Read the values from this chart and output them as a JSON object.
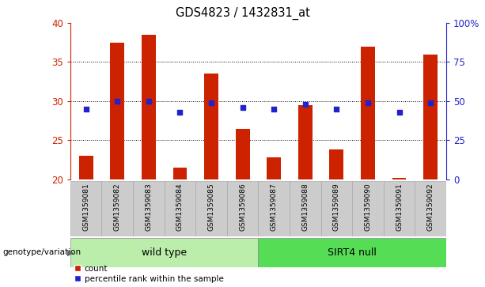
{
  "title": "GDS4823 / 1432831_at",
  "samples": [
    "GSM1359081",
    "GSM1359082",
    "GSM1359083",
    "GSM1359084",
    "GSM1359085",
    "GSM1359086",
    "GSM1359087",
    "GSM1359088",
    "GSM1359089",
    "GSM1359090",
    "GSM1359091",
    "GSM1359092"
  ],
  "counts": [
    23.0,
    37.5,
    38.5,
    21.5,
    33.5,
    26.5,
    22.8,
    29.5,
    23.8,
    37.0,
    20.2,
    36.0
  ],
  "percentiles": [
    45,
    50,
    50,
    43,
    49,
    46,
    45,
    48,
    45,
    49,
    43,
    49
  ],
  "ymin": 20,
  "ymax": 40,
  "yticks_left": [
    20,
    25,
    30,
    35,
    40
  ],
  "yticks_right": [
    0,
    25,
    50,
    75,
    100
  ],
  "right_yticklabels": [
    "0",
    "25",
    "50",
    "75",
    "100%"
  ],
  "bar_color": "#cc2200",
  "dot_color": "#2222cc",
  "plot_bg": "#ffffff",
  "tick_area_color": "#cccccc",
  "group1_label": "wild type",
  "group2_label": "SIRT4 null",
  "group1_color": "#bbeeaa",
  "group2_color": "#55dd55",
  "legend_count_label": "count",
  "legend_percentile_label": "percentile rank within the sample",
  "genotype_label": "genotype/variation"
}
